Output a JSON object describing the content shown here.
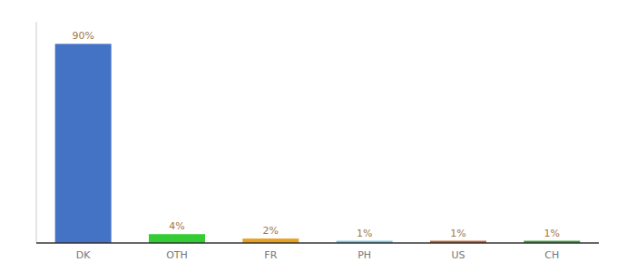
{
  "chart_data": {
    "type": "bar",
    "categories": [
      "DK",
      "OTH",
      "FR",
      "PH",
      "US",
      "CH"
    ],
    "values": [
      90,
      4,
      2,
      1,
      1,
      1
    ],
    "value_labels": [
      "90%",
      "4%",
      "2%",
      "1%",
      "1%",
      "1%"
    ],
    "colors": [
      "#4472c4",
      "#33cc33",
      "#e8a020",
      "#74c6e8",
      "#c0622a",
      "#33a033"
    ],
    "ylim": [
      0,
      100
    ],
    "grid": false,
    "data_labels": true,
    "tick_labels": "x"
  }
}
